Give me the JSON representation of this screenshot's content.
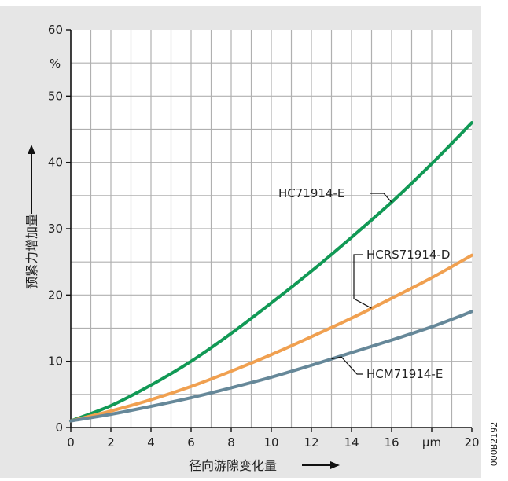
{
  "chart_data": {
    "type": "line",
    "title": "",
    "xlabel": "径向游隙变化量",
    "ylabel": "预紧力增加量",
    "x_unit": "μm",
    "y_unit": "%",
    "xlim": [
      0,
      20
    ],
    "ylim": [
      0,
      60
    ],
    "x_ticks": [
      0,
      2,
      4,
      6,
      8,
      10,
      12,
      14,
      16,
      18,
      20
    ],
    "x_tick_labels": [
      "0",
      "2",
      "4",
      "6",
      "8",
      "10",
      "12",
      "14",
      "16",
      "μm",
      "20"
    ],
    "y_ticks": [
      0,
      10,
      20,
      30,
      40,
      50,
      60
    ],
    "y_tick_labels": [
      "0",
      "10",
      "20",
      "30",
      "40",
      "50",
      "60"
    ],
    "grid": true,
    "series": [
      {
        "name": "HC71914-E",
        "color": "#119955",
        "x": [
          0,
          2,
          4,
          6,
          8,
          10,
          12,
          14,
          16,
          18,
          20
        ],
        "y": [
          1.0,
          3.3,
          6.4,
          10.0,
          14.2,
          18.8,
          23.6,
          28.7,
          34.0,
          39.8,
          46.0
        ]
      },
      {
        "name": "HCRS71914-D",
        "color": "#f0a050",
        "x": [
          0,
          2,
          4,
          6,
          8,
          10,
          12,
          14,
          16,
          18,
          20
        ],
        "y": [
          1.0,
          2.5,
          4.2,
          6.2,
          8.5,
          11.0,
          13.7,
          16.5,
          19.5,
          22.6,
          26.0
        ]
      },
      {
        "name": "HCM71914-E",
        "color": "#668899",
        "x": [
          0,
          2,
          4,
          6,
          8,
          10,
          12,
          14,
          16,
          18,
          20
        ],
        "y": [
          1.0,
          2.0,
          3.2,
          4.5,
          6.0,
          7.6,
          9.4,
          11.3,
          13.2,
          15.2,
          17.5
        ]
      }
    ],
    "annotations": [
      {
        "text": "HC71914-E",
        "series": 0
      },
      {
        "text": "HCRS71914-D",
        "series": 1
      },
      {
        "text": "HCM71914-E",
        "series": 2
      }
    ],
    "colors": {
      "background": "#e6e6e6",
      "grid": "#b0b0b0"
    }
  },
  "side_code": "000B2192"
}
